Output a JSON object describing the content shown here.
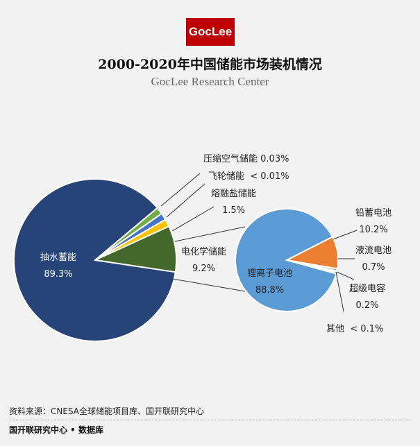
{
  "logo": "GocLee",
  "title": "2000-2020年中国储能市场装机情况",
  "subtitle": "GocLee Research Center",
  "source": "资料来源：CNESA全球储能项目库、国开联研究中心",
  "footer": "国开联研究中心 • 数据库",
  "chart_data": [
    {
      "type": "pie",
      "slices": [
        {
          "name": "压缩空气储能",
          "label": "0.03%",
          "value": 0.03,
          "color": "#70AD47"
        },
        {
          "name": "飞轮储能",
          "label": "< 0.01%",
          "value": 0.01,
          "color": "#4472C4"
        },
        {
          "name": "熔融盐储能",
          "label": "1.5%",
          "value": 1.5,
          "color": "#FFC000"
        },
        {
          "name": "电化学储能",
          "label": "9.2%",
          "value": 9.2,
          "color": "#43682B"
        },
        {
          "name": "抽水蓄能",
          "label": "89.3%",
          "value": 89.3,
          "color": "#264478"
        }
      ]
    },
    {
      "type": "pie",
      "slices": [
        {
          "name": "铅蓄电池",
          "label": "10.2%",
          "value": 10.2,
          "color": "#ED7D31"
        },
        {
          "name": "液流电池",
          "label": "0.7%",
          "value": 0.7,
          "color": "#A5A5A5"
        },
        {
          "name": "超级电容",
          "label": "0.2%",
          "value": 0.2,
          "color": "#FFC000"
        },
        {
          "name": "其他",
          "label": "< 0.1%",
          "value": 0.1,
          "color": "#4472C4"
        },
        {
          "name": "锂离子电池",
          "label": "88.8%",
          "value": 88.8,
          "color": "#5B9BD5"
        }
      ]
    }
  ]
}
